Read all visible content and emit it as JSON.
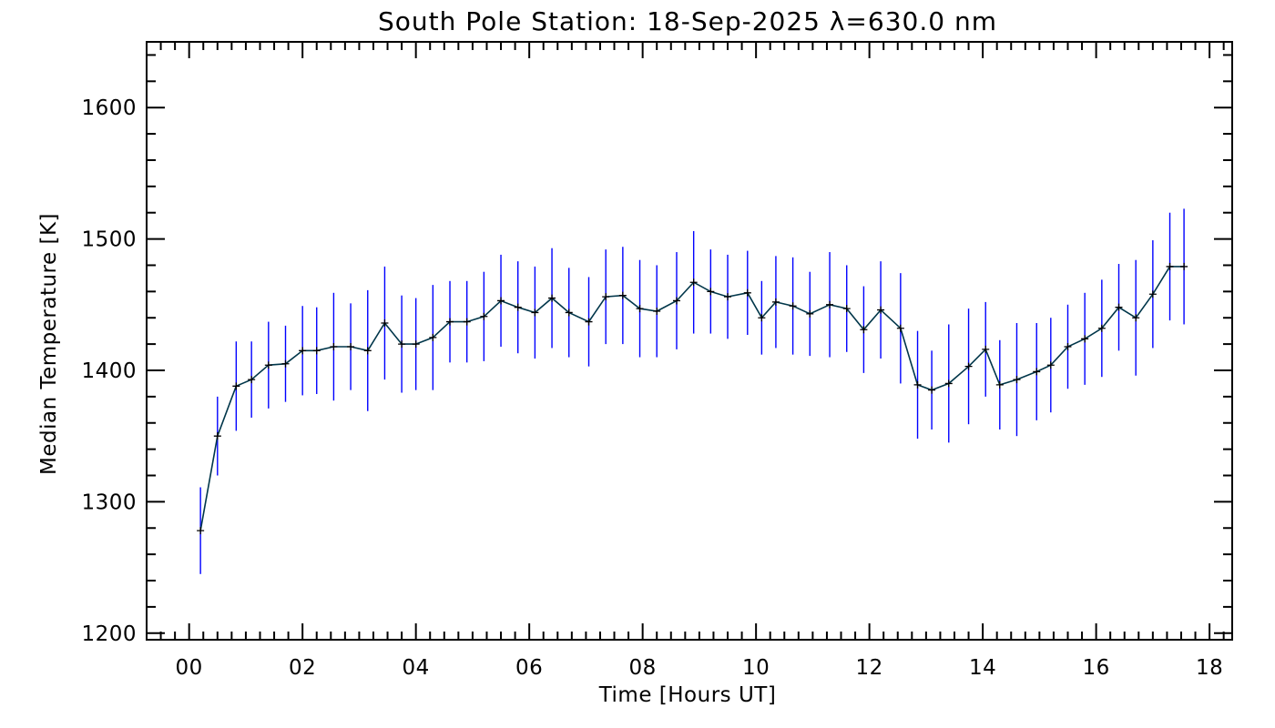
{
  "chart_data": {
    "type": "line",
    "title": "South Pole Station: 18-Sep-2025 λ=630.0 nm",
    "xlabel": "Time [Hours UT]",
    "ylabel": "Median Temperature [K]",
    "xlim": [
      -0.75,
      18.4
    ],
    "ylim": [
      1195,
      1650
    ],
    "xticks": [
      0,
      2,
      4,
      6,
      8,
      10,
      12,
      14,
      16,
      18
    ],
    "xtick_labels": [
      "00",
      "02",
      "04",
      "06",
      "08",
      "10",
      "12",
      "14",
      "16",
      "18"
    ],
    "yticks": [
      1200,
      1300,
      1400,
      1500,
      1600
    ],
    "ytick_labels": [
      "1200",
      "1300",
      "1400",
      "1500",
      "1600"
    ],
    "grid": false,
    "series": [
      {
        "name": "Median Temperature",
        "line_color": "#00364a",
        "errorbar_color": "#0000ff",
        "x": [
          0.2,
          0.5,
          0.83,
          1.1,
          1.4,
          1.7,
          2.0,
          2.25,
          2.55,
          2.85,
          3.15,
          3.45,
          3.75,
          4.0,
          4.3,
          4.6,
          4.9,
          5.2,
          5.5,
          5.8,
          6.1,
          6.4,
          6.7,
          7.05,
          7.35,
          7.65,
          7.95,
          8.25,
          8.6,
          8.9,
          9.2,
          9.5,
          9.85,
          10.1,
          10.35,
          10.65,
          10.95,
          11.3,
          11.6,
          11.9,
          12.2,
          12.55,
          12.85,
          13.1,
          13.4,
          13.75,
          14.05,
          14.3,
          14.6,
          14.95,
          15.2,
          15.5,
          15.8,
          16.1,
          16.4,
          16.7,
          17.0,
          17.3,
          17.55
        ],
        "y": [
          1278,
          1350,
          1388,
          1393,
          1404,
          1405,
          1415,
          1415,
          1418,
          1418,
          1415,
          1436,
          1420,
          1420,
          1425,
          1437,
          1437,
          1441,
          1453,
          1448,
          1444,
          1455,
          1444,
          1437,
          1456,
          1457,
          1447,
          1445,
          1453,
          1467,
          1460,
          1456,
          1459,
          1440,
          1452,
          1449,
          1443,
          1450,
          1447,
          1431,
          1446,
          1432,
          1389,
          1385,
          1390,
          1403,
          1416,
          1389,
          1393,
          1399,
          1404,
          1418,
          1424,
          1432,
          1448,
          1440,
          1458,
          1479,
          1479
        ],
        "err": [
          33,
          30,
          34,
          29,
          33,
          29,
          34,
          33,
          41,
          33,
          46,
          43,
          37,
          35,
          40,
          31,
          31,
          34,
          35,
          35,
          35,
          38,
          34,
          34,
          36,
          37,
          37,
          35,
          37,
          39,
          32,
          32,
          32,
          28,
          35,
          37,
          32,
          40,
          33,
          33,
          37,
          42,
          41,
          30,
          45,
          44,
          36,
          34,
          43,
          37,
          36,
          32,
          35,
          37,
          33,
          44,
          41,
          41,
          44
        ]
      }
    ]
  }
}
